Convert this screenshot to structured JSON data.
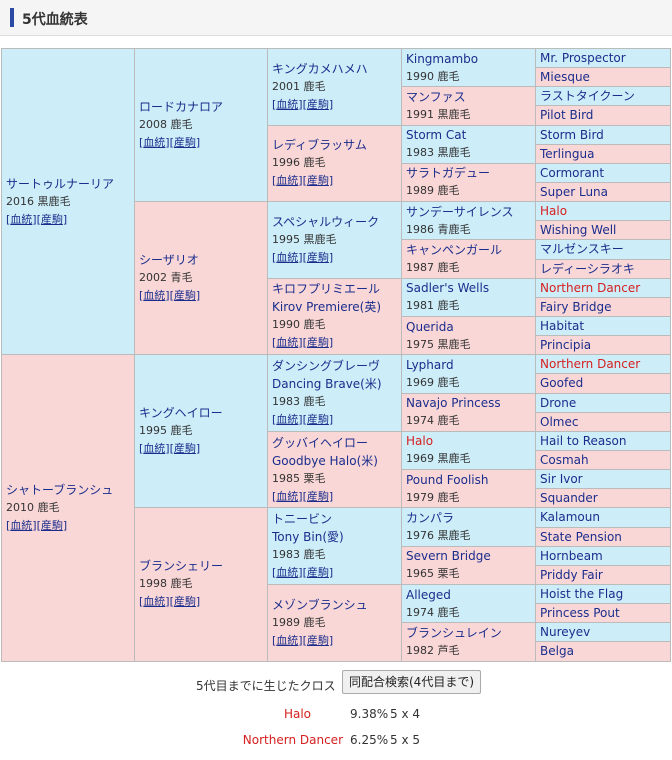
{
  "header": {
    "title": "5代血統表"
  },
  "links": {
    "bloodline": "血統",
    "breeder": "産駒"
  },
  "gen1": [
    {
      "name": "サートゥルナーリア",
      "info": "2016 黒鹿毛",
      "sex": "m"
    },
    {
      "name": "シャトーブランシュ",
      "info": "2010 鹿毛",
      "sex": "f"
    }
  ],
  "gen2": [
    {
      "name": "ロードカナロア",
      "info": "2008 鹿毛",
      "sex": "m"
    },
    {
      "name": "シーザリオ",
      "info": "2002 青毛",
      "sex": "f"
    },
    {
      "name": "キングヘイロー",
      "info": "1995 鹿毛",
      "sex": "m"
    },
    {
      "name": "ブランシェリー",
      "info": "1998 鹿毛",
      "sex": "f"
    }
  ],
  "gen3": [
    {
      "name": "キングカメハメハ",
      "info": "2001 鹿毛",
      "sex": "m"
    },
    {
      "name": "レディブラッサム",
      "info": "1996 鹿毛",
      "sex": "f"
    },
    {
      "name": "スペシャルウィーク",
      "info": "1995 黒鹿毛",
      "sex": "m"
    },
    {
      "name": "キロフプリミエール",
      "en": "Kirov Premiere(英)",
      "info": "1990 鹿毛",
      "sex": "f"
    },
    {
      "name": "ダンシングブレーヴ",
      "en": "Dancing Brave(米)",
      "info": "1983 鹿毛",
      "sex": "m"
    },
    {
      "name": "グッバイヘイロー",
      "en": "Goodbye Halo(米)",
      "info": "1985 栗毛",
      "sex": "f"
    },
    {
      "name": "トニービン",
      "en": "Tony Bin(愛)",
      "info": "1983 鹿毛",
      "sex": "m"
    },
    {
      "name": "メゾンブランシュ",
      "info": "1989 鹿毛",
      "sex": "f"
    }
  ],
  "gen4": [
    {
      "name": "Kingmambo",
      "info": "1990 鹿毛",
      "sex": "m"
    },
    {
      "name": "マンファス",
      "info": "1991 黒鹿毛",
      "sex": "f"
    },
    {
      "name": "Storm Cat",
      "info": "1983 黒鹿毛",
      "sex": "m"
    },
    {
      "name": "サラトガデュー",
      "info": "1989 鹿毛",
      "sex": "f"
    },
    {
      "name": "サンデーサイレンス",
      "info": "1986 青鹿毛",
      "sex": "m"
    },
    {
      "name": "キャンペンガール",
      "info": "1987 鹿毛",
      "sex": "f"
    },
    {
      "name": "Sadler's Wells",
      "info": "1981 鹿毛",
      "sex": "m"
    },
    {
      "name": "Querida",
      "info": "1975 黒鹿毛",
      "sex": "f"
    },
    {
      "name": "Lyphard",
      "info": "1969 鹿毛",
      "sex": "m"
    },
    {
      "name": "Navajo Princess",
      "info": "1974 鹿毛",
      "sex": "f"
    },
    {
      "name": "Halo",
      "info": "1969 黒鹿毛",
      "sex": "m",
      "cross": true
    },
    {
      "name": "Pound Foolish",
      "info": "1979 鹿毛",
      "sex": "f"
    },
    {
      "name": "カンパラ",
      "info": "1976 黒鹿毛",
      "sex": "m"
    },
    {
      "name": "Severn Bridge",
      "info": "1965 栗毛",
      "sex": "f"
    },
    {
      "name": "Alleged",
      "info": "1974 鹿毛",
      "sex": "m"
    },
    {
      "name": "ブランシュレイン",
      "info": "1982 芦毛",
      "sex": "f"
    }
  ],
  "gen5": [
    {
      "name": "Mr. Prospector",
      "sex": "m"
    },
    {
      "name": "Miesque",
      "sex": "f"
    },
    {
      "name": "ラストタイクーン",
      "sex": "m"
    },
    {
      "name": "Pilot Bird",
      "sex": "f"
    },
    {
      "name": "Storm Bird",
      "sex": "m"
    },
    {
      "name": "Terlingua",
      "sex": "f"
    },
    {
      "name": "Cormorant",
      "sex": "m"
    },
    {
      "name": "Super Luna",
      "sex": "f"
    },
    {
      "name": "Halo",
      "sex": "m",
      "cross": true
    },
    {
      "name": "Wishing Well",
      "sex": "f"
    },
    {
      "name": "マルゼンスキー",
      "sex": "m"
    },
    {
      "name": "レディーシラオキ",
      "sex": "f"
    },
    {
      "name": "Northern Dancer",
      "sex": "m",
      "cross": true
    },
    {
      "name": "Fairy Bridge",
      "sex": "f"
    },
    {
      "name": "Habitat",
      "sex": "m"
    },
    {
      "name": "Principia",
      "sex": "f"
    },
    {
      "name": "Northern Dancer",
      "sex": "m",
      "cross": true
    },
    {
      "name": "Goofed",
      "sex": "f"
    },
    {
      "name": "Drone",
      "sex": "m"
    },
    {
      "name": "Olmec",
      "sex": "f"
    },
    {
      "name": "Hail to Reason",
      "sex": "m"
    },
    {
      "name": "Cosmah",
      "sex": "f"
    },
    {
      "name": "Sir Ivor",
      "sex": "m"
    },
    {
      "name": "Squander",
      "sex": "f"
    },
    {
      "name": "Kalamoun",
      "sex": "m"
    },
    {
      "name": "State Pension",
      "sex": "f"
    },
    {
      "name": "Hornbeam",
      "sex": "m"
    },
    {
      "name": "Priddy Fair",
      "sex": "f"
    },
    {
      "name": "Hoist the Flag",
      "sex": "m"
    },
    {
      "name": "Princess Pout",
      "sex": "f"
    },
    {
      "name": "Nureyev",
      "sex": "m"
    },
    {
      "name": "Belga",
      "sex": "f"
    }
  ],
  "cross": {
    "label": "5代目までに生じたクロス",
    "button": "同配合検索(4代目まで)",
    "items": [
      {
        "name": "Halo",
        "percent": "9.38%",
        "gen": "5 x 4"
      },
      {
        "name": "Northern Dancer",
        "percent": "6.25%",
        "gen": "5 x 5"
      }
    ]
  },
  "colors": {
    "male_bg": "#cdeef9",
    "female_bg": "#fad7d7",
    "link": "#1a2d8c",
    "cross": "#d62020",
    "accent": "#2a4aa3"
  }
}
